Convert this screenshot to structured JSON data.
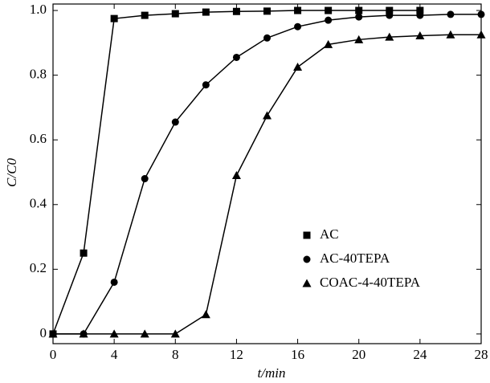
{
  "chart_data": {
    "type": "line",
    "xlabel": "t/min",
    "ylabel": "C/C0",
    "xlim": [
      0,
      28
    ],
    "ylim": [
      -0.03,
      1.02
    ],
    "xticks": [
      0,
      4,
      8,
      12,
      16,
      20,
      24,
      28
    ],
    "yticks": [
      0,
      0.2,
      0.4,
      0.6,
      0.8,
      {
        "value": 1,
        "label": "1.0"
      }
    ],
    "legend": "lower right",
    "series": [
      {
        "name": "AC",
        "color": "#000000",
        "marker": "square",
        "x": [
          0,
          2,
          4,
          6,
          8,
          10,
          12,
          14,
          16,
          18,
          20,
          22,
          24
        ],
        "values": [
          0,
          0.25,
          0.975,
          0.985,
          0.99,
          0.995,
          0.997,
          0.998,
          1.0,
          1.0,
          1.0,
          1.0,
          1.0
        ]
      },
      {
        "name": "AC-40TEPA",
        "color": "#000000",
        "marker": "circle",
        "x": [
          0,
          2,
          4,
          6,
          8,
          10,
          12,
          14,
          16,
          18,
          20,
          22,
          24,
          26,
          28
        ],
        "values": [
          0,
          0,
          0.16,
          0.48,
          0.655,
          0.77,
          0.855,
          0.915,
          0.95,
          0.97,
          0.98,
          0.985,
          0.985,
          0.988,
          0.988
        ]
      },
      {
        "name": "COAC-4-40TEPA",
        "color": "#000000",
        "marker": "triangle",
        "x": [
          0,
          2,
          4,
          6,
          8,
          10,
          12,
          14,
          16,
          18,
          20,
          22,
          24,
          26,
          28
        ],
        "values": [
          0,
          0,
          0,
          0,
          0,
          0.06,
          0.49,
          0.675,
          0.825,
          0.895,
          0.91,
          0.918,
          0.922,
          0.925,
          0.925
        ]
      }
    ]
  }
}
